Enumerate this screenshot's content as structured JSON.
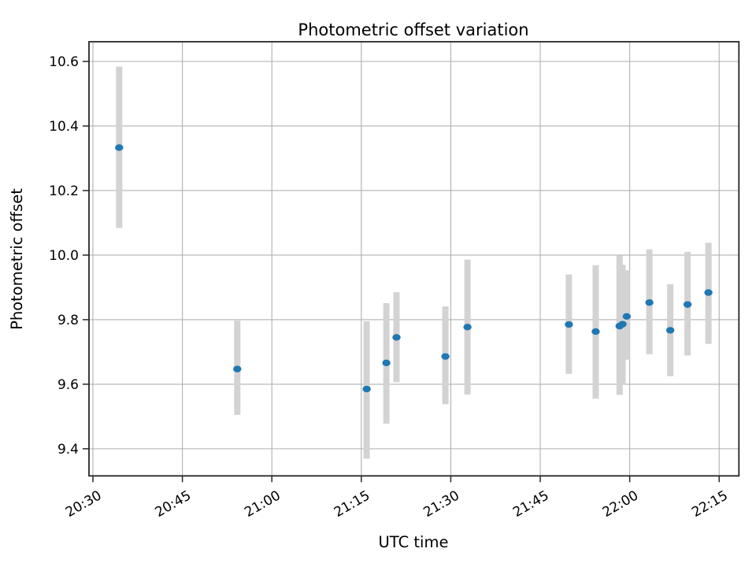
{
  "chart_data": {
    "type": "scatter",
    "title": "Photometric offset variation",
    "xlabel": "UTC time",
    "ylabel": "Photometric offset",
    "grid": true,
    "legend": null,
    "x_tick_labels": [
      "20:30",
      "20:45",
      "21:00",
      "21:15",
      "21:30",
      "21:45",
      "22:00",
      "22:15"
    ],
    "x_tick_minutes": [
      0,
      15,
      30,
      45,
      60,
      75,
      90,
      105
    ],
    "xlim_minutes_after_2030": [
      -0.66,
      108.31
    ],
    "y_tick_labels": [
      "9.4",
      "9.6",
      "9.8",
      "10.0",
      "10.2",
      "10.4",
      "10.6"
    ],
    "y_tick_values": [
      9.4,
      9.6,
      9.8,
      10.0,
      10.2,
      10.4,
      10.6
    ],
    "ylim": [
      9.316,
      10.661
    ],
    "marker_color": "#1f77b4",
    "errorbar_color": "#d3d3d3",
    "grid_color": "#b0b0b0",
    "spine_color": "#262626",
    "points": [
      {
        "utc": "20:34",
        "t": 4.4,
        "y": 10.333,
        "err_lo": 10.084,
        "err_hi": 10.584
      },
      {
        "utc": "20:54",
        "t": 24.2,
        "y": 9.647,
        "err_lo": 9.505,
        "err_hi": 9.797
      },
      {
        "utc": "21:16",
        "t": 45.9,
        "y": 9.585,
        "err_lo": 9.369,
        "err_hi": 9.795
      },
      {
        "utc": "21:19",
        "t": 49.2,
        "y": 9.666,
        "err_lo": 9.478,
        "err_hi": 9.851
      },
      {
        "utc": "21:21",
        "t": 50.9,
        "y": 9.745,
        "err_lo": 9.606,
        "err_hi": 9.885
      },
      {
        "utc": "21:29",
        "t": 59.1,
        "y": 9.686,
        "err_lo": 9.538,
        "err_hi": 9.841
      },
      {
        "utc": "21:33",
        "t": 62.8,
        "y": 9.777,
        "err_lo": 9.568,
        "err_hi": 9.986
      },
      {
        "utc": "21:50",
        "t": 79.8,
        "y": 9.785,
        "err_lo": 9.632,
        "err_hi": 9.94
      },
      {
        "utc": "21:54",
        "t": 84.3,
        "y": 9.763,
        "err_lo": 9.555,
        "err_hi": 9.969
      },
      {
        "utc": "21:58",
        "t": 88.3,
        "y": 9.78,
        "err_lo": 9.567,
        "err_hi": 9.998
      },
      {
        "utc": "21:59",
        "t": 88.8,
        "y": 9.786,
        "err_lo": 9.6,
        "err_hi": 9.97
      },
      {
        "utc": "21:59",
        "t": 89.5,
        "y": 9.81,
        "err_lo": 9.676,
        "err_hi": 9.953
      },
      {
        "utc": "22:03",
        "t": 93.3,
        "y": 9.853,
        "err_lo": 9.693,
        "err_hi": 10.018
      },
      {
        "utc": "22:07",
        "t": 96.8,
        "y": 9.767,
        "err_lo": 9.625,
        "err_hi": 9.91
      },
      {
        "utc": "22:10",
        "t": 99.7,
        "y": 9.847,
        "err_lo": 9.689,
        "err_hi": 10.01
      },
      {
        "utc": "22:13",
        "t": 103.2,
        "y": 9.884,
        "err_lo": 9.725,
        "err_hi": 10.038
      }
    ]
  }
}
